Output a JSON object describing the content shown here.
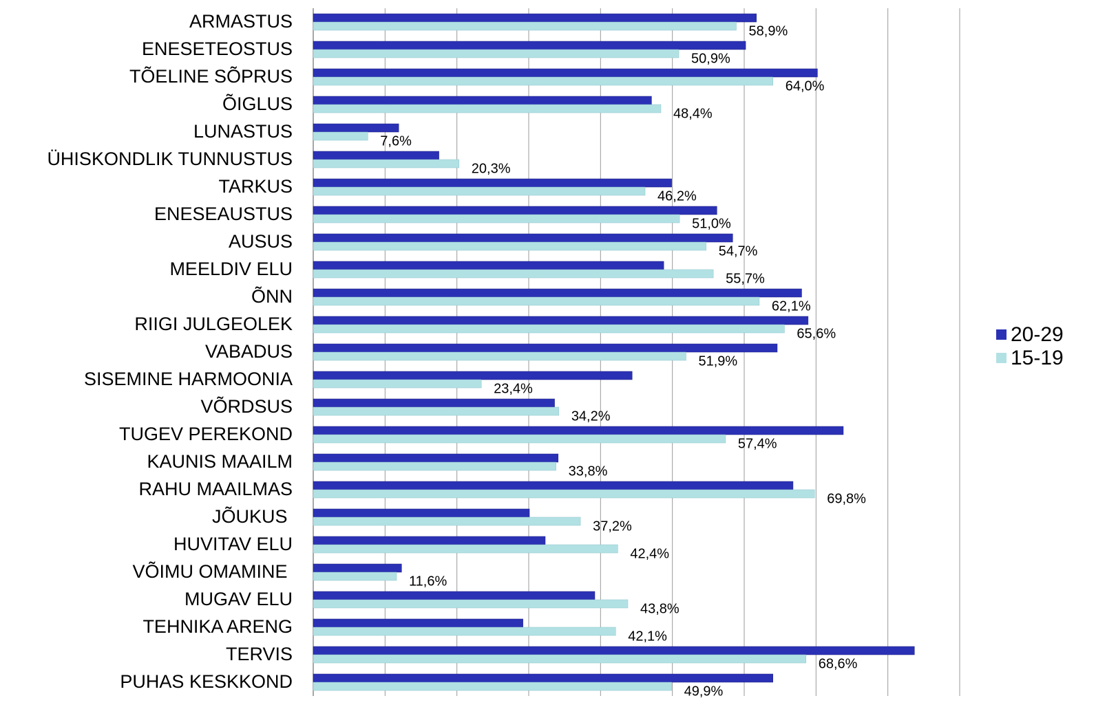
{
  "chart_data": {
    "type": "hbar",
    "categories": [
      "ARMASTUS",
      "ENESETEOSTUS",
      "TÕELINE SÕPRUS",
      "ÕIGLUS",
      "LUNASTUS",
      "ÜHISKONDLIK TUNNUSTUS",
      "TARKUS",
      "ENESEAUSTUS",
      "AUSUS",
      "MEELDIV ELU",
      "ÕNN",
      "RIIGI JULGEOLEK",
      "VABADUS",
      "SISEMINE HARMOONIA",
      "VÕRDSUS",
      "TUGEV PEREKOND",
      "KAUNIS MAAILM",
      "RAHU MAAILMAS",
      "JÕUKUS ",
      "HUVITAV ELU",
      "VÕIMU OMAMINE ",
      "MUGAV ELU",
      "TEHNIKA ARENG",
      "TERVIS",
      "PUHAS KESKKOND"
    ],
    "series": [
      {
        "name": "20-29",
        "color": "#2b31b5",
        "values": [
          61.7,
          60.2,
          70.2,
          47.1,
          11.9,
          17.5,
          49.9,
          56.2,
          58.4,
          48.8,
          68.0,
          68.9,
          64.6,
          44.4,
          33.6,
          73.8,
          34.1,
          66.8,
          30.1,
          32.3,
          12.3,
          39.2,
          29.2,
          83.7,
          64.0
        ]
      },
      {
        "name": "15-19",
        "color": "#b2e1e4",
        "values": [
          58.9,
          50.9,
          64.0,
          48.4,
          7.6,
          20.3,
          46.2,
          51.0,
          54.7,
          55.7,
          62.1,
          65.6,
          51.9,
          23.4,
          34.2,
          57.4,
          33.8,
          69.8,
          37.2,
          42.4,
          11.6,
          43.8,
          42.1,
          68.6,
          49.9
        ],
        "value_labels": [
          "58,9%",
          "50,9%",
          "64,0%",
          "48,4%",
          "7,6%",
          "20,3%",
          "46,2%",
          "51,0%",
          "54,7%",
          "55,7%",
          "62,1%",
          "65,6%",
          "51,9%",
          "23,4%",
          "34,2%",
          "57,4%",
          "33,8%",
          "69,8%",
          "37,2%",
          "42,4%",
          "11,6%",
          "43,8%",
          "42,1%",
          "68,6%",
          "49,9%"
        ]
      }
    ],
    "xlim": [
      0,
      90
    ],
    "xticks": [
      0,
      10,
      20,
      30,
      40,
      50,
      60,
      70,
      80,
      90
    ],
    "grid": true,
    "legend": "right"
  }
}
